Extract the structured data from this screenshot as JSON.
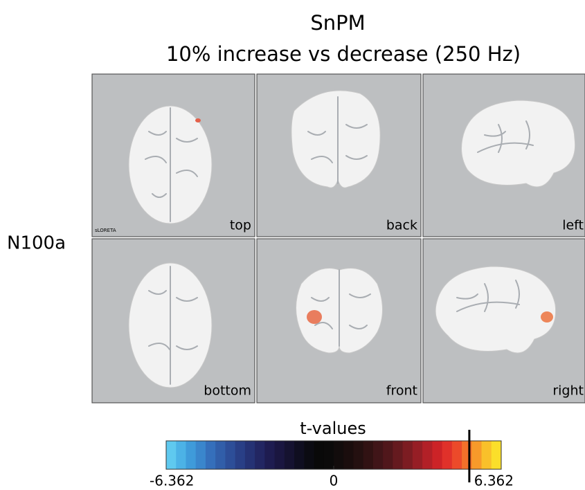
{
  "header": {
    "title": "SnPM",
    "subtitle": "10%  increase vs decrease  (250 Hz)"
  },
  "row_label": "N100a",
  "panels": [
    {
      "label": "top",
      "note": "sLORETA"
    },
    {
      "label": "back"
    },
    {
      "label": "left"
    },
    {
      "label": "bottom"
    },
    {
      "label": "front"
    },
    {
      "label": "right"
    }
  ],
  "colorbar": {
    "label": "t-values",
    "ticks": [
      -6.362,
      0,
      6.362
    ],
    "threshold": 5.15,
    "colors": [
      "#5fc9ef",
      "#4cb2e6",
      "#3f9bda",
      "#3a86cc",
      "#356fbb",
      "#315ea9",
      "#2d4e98",
      "#293f86",
      "#253274",
      "#222662",
      "#1e1c50",
      "#1a1640",
      "#151230",
      "#0f0e20",
      "#0b0b12",
      "#090909",
      "#0b0a0a",
      "#120c0c",
      "#1a0d0d",
      "#241010",
      "#311213",
      "#401518",
      "#50171b",
      "#651a1f",
      "#7c1c22",
      "#961e25",
      "#b22027",
      "#cc2327",
      "#e0312a",
      "#ec4a2a",
      "#f3702a",
      "#f79a2a",
      "#f9c02a",
      "#fbdf2a"
    ]
  }
}
